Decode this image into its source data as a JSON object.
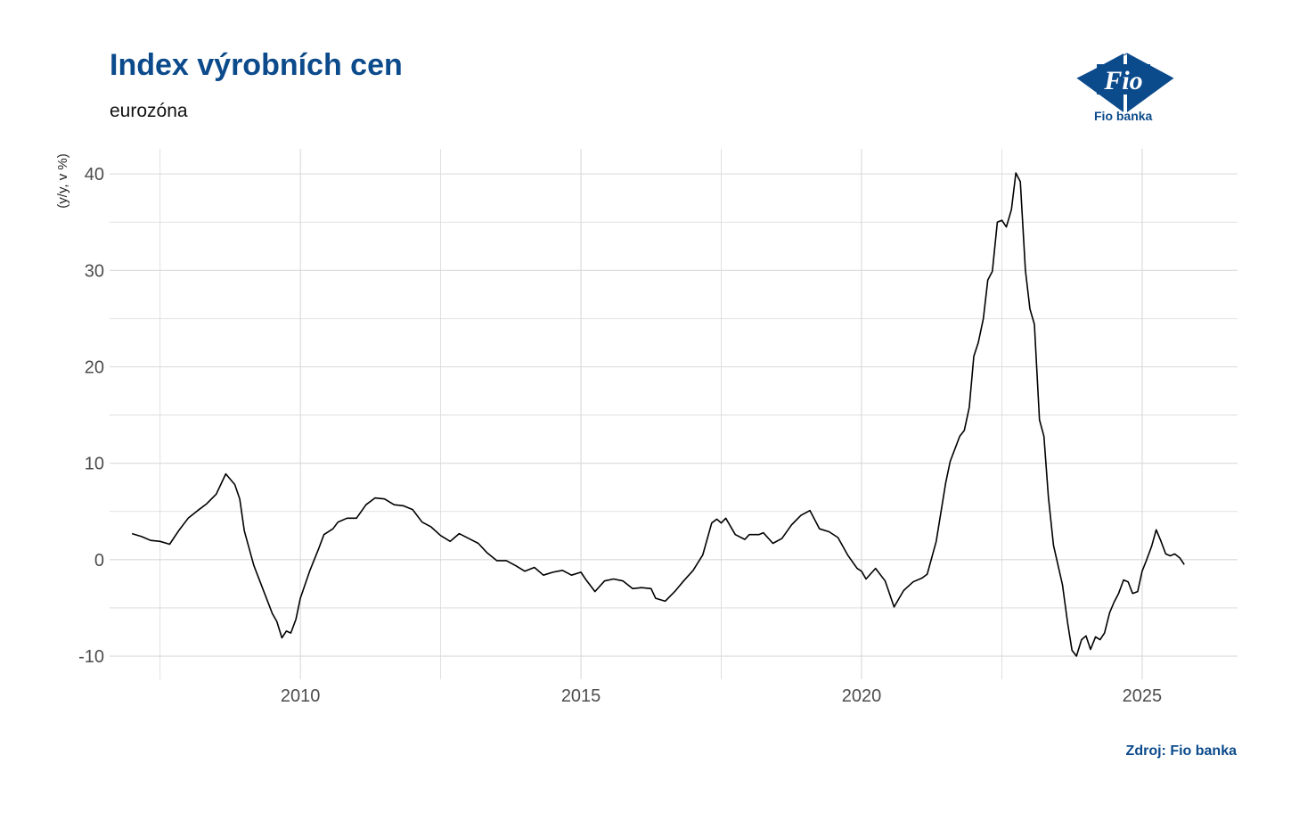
{
  "header": {
    "title": "Index výrobních cen",
    "subtitle": "eurozóna"
  },
  "logo": {
    "mark_text": "Fio",
    "caption": "Fio banka"
  },
  "footer": {
    "source": "Zdroj: Fio banka"
  },
  "colors": {
    "title": "#0b4a8b",
    "line": "#000000",
    "grid": "#d9d9d9"
  },
  "chart_data": {
    "type": "line",
    "title": "Index výrobních cen",
    "subtitle": "eurozóna",
    "xlabel": "",
    "ylabel": "(y/y, v %)",
    "xlim": [
      2006.6,
      2026.7
    ],
    "ylim": [
      -12.4,
      42.6
    ],
    "xticks": [
      2010,
      2015,
      2020,
      2025
    ],
    "xtick_labels": [
      "2010",
      "2015",
      "2020",
      "2025"
    ],
    "yticks": [
      -10,
      0,
      10,
      20,
      30,
      40
    ],
    "ytick_labels": [
      "-10",
      "0",
      "10",
      "20",
      "30",
      "40"
    ],
    "grid": true,
    "legend": "none",
    "series": [
      {
        "values": [
          [
            2007.0,
            2.7
          ],
          [
            2007.17,
            2.4
          ],
          [
            2007.33,
            2.0
          ],
          [
            2007.5,
            1.9
          ],
          [
            2007.67,
            1.6
          ],
          [
            2007.83,
            3.0
          ],
          [
            2008.0,
            4.3
          ],
          [
            2008.17,
            5.1
          ],
          [
            2008.33,
            5.8
          ],
          [
            2008.5,
            6.8
          ],
          [
            2008.67,
            8.9
          ],
          [
            2008.83,
            7.8
          ],
          [
            2008.92,
            6.3
          ],
          [
            2009.0,
            3.0
          ],
          [
            2009.17,
            -0.6
          ],
          [
            2009.33,
            -3.0
          ],
          [
            2009.5,
            -5.6
          ],
          [
            2009.58,
            -6.4
          ],
          [
            2009.67,
            -8.1
          ],
          [
            2009.75,
            -7.4
          ],
          [
            2009.83,
            -7.6
          ],
          [
            2009.92,
            -6.2
          ],
          [
            2010.0,
            -4.0
          ],
          [
            2010.17,
            -1.1
          ],
          [
            2010.33,
            1.2
          ],
          [
            2010.42,
            2.6
          ],
          [
            2010.58,
            3.2
          ],
          [
            2010.67,
            3.9
          ],
          [
            2010.83,
            4.3
          ],
          [
            2011.0,
            4.3
          ],
          [
            2011.17,
            5.7
          ],
          [
            2011.33,
            6.4
          ],
          [
            2011.5,
            6.3
          ],
          [
            2011.67,
            5.7
          ],
          [
            2011.83,
            5.6
          ],
          [
            2012.0,
            5.2
          ],
          [
            2012.17,
            3.9
          ],
          [
            2012.33,
            3.4
          ],
          [
            2012.5,
            2.5
          ],
          [
            2012.67,
            1.9
          ],
          [
            2012.83,
            2.7
          ],
          [
            2013.0,
            2.2
          ],
          [
            2013.17,
            1.7
          ],
          [
            2013.33,
            0.7
          ],
          [
            2013.5,
            -0.1
          ],
          [
            2013.67,
            -0.1
          ],
          [
            2013.83,
            -0.6
          ],
          [
            2014.0,
            -1.2
          ],
          [
            2014.17,
            -0.8
          ],
          [
            2014.33,
            -1.6
          ],
          [
            2014.5,
            -1.3
          ],
          [
            2014.67,
            -1.1
          ],
          [
            2014.83,
            -1.6
          ],
          [
            2015.0,
            -1.3
          ],
          [
            2015.08,
            -2.0
          ],
          [
            2015.25,
            -3.3
          ],
          [
            2015.42,
            -2.2
          ],
          [
            2015.58,
            -2.0
          ],
          [
            2015.75,
            -2.2
          ],
          [
            2015.92,
            -3.0
          ],
          [
            2016.08,
            -2.9
          ],
          [
            2016.25,
            -3.0
          ],
          [
            2016.33,
            -4.0
          ],
          [
            2016.5,
            -4.3
          ],
          [
            2016.67,
            -3.3
          ],
          [
            2016.83,
            -2.2
          ],
          [
            2017.0,
            -1.1
          ],
          [
            2017.17,
            0.5
          ],
          [
            2017.33,
            3.8
          ],
          [
            2017.42,
            4.2
          ],
          [
            2017.5,
            3.8
          ],
          [
            2017.58,
            4.3
          ],
          [
            2017.75,
            2.6
          ],
          [
            2017.92,
            2.1
          ],
          [
            2018.0,
            2.6
          ],
          [
            2018.17,
            2.6
          ],
          [
            2018.25,
            2.8
          ],
          [
            2018.42,
            1.7
          ],
          [
            2018.58,
            2.2
          ],
          [
            2018.75,
            3.6
          ],
          [
            2018.92,
            4.6
          ],
          [
            2019.08,
            5.1
          ],
          [
            2019.25,
            3.2
          ],
          [
            2019.42,
            2.9
          ],
          [
            2019.58,
            2.3
          ],
          [
            2019.75,
            0.5
          ],
          [
            2019.92,
            -0.9
          ],
          [
            2020.0,
            -1.2
          ],
          [
            2020.08,
            -2.0
          ],
          [
            2020.25,
            -0.9
          ],
          [
            2020.42,
            -2.2
          ],
          [
            2020.58,
            -4.9
          ],
          [
            2020.75,
            -3.2
          ],
          [
            2020.92,
            -2.3
          ],
          [
            2021.08,
            -1.9
          ],
          [
            2021.17,
            -1.5
          ],
          [
            2021.33,
            1.9
          ],
          [
            2021.5,
            8.0
          ],
          [
            2021.58,
            10.2
          ],
          [
            2021.75,
            12.8
          ],
          [
            2021.83,
            13.4
          ],
          [
            2021.92,
            15.8
          ],
          [
            2022.0,
            21.1
          ],
          [
            2022.08,
            22.5
          ],
          [
            2022.17,
            25.0
          ],
          [
            2022.25,
            29.0
          ],
          [
            2022.33,
            29.9
          ],
          [
            2022.42,
            35.0
          ],
          [
            2022.5,
            35.2
          ],
          [
            2022.58,
            34.5
          ],
          [
            2022.67,
            36.3
          ],
          [
            2022.75,
            40.1
          ],
          [
            2022.83,
            39.2
          ],
          [
            2022.92,
            30.0
          ],
          [
            2023.0,
            26.0
          ],
          [
            2023.08,
            24.4
          ],
          [
            2023.17,
            14.5
          ],
          [
            2023.25,
            12.8
          ],
          [
            2023.33,
            6.5
          ],
          [
            2023.42,
            1.5
          ],
          [
            2023.58,
            -2.6
          ],
          [
            2023.67,
            -6.5
          ],
          [
            2023.75,
            -9.4
          ],
          [
            2023.83,
            -10.0
          ],
          [
            2023.92,
            -8.3
          ],
          [
            2024.0,
            -7.9
          ],
          [
            2024.08,
            -9.3
          ],
          [
            2024.17,
            -8.0
          ],
          [
            2024.25,
            -8.3
          ],
          [
            2024.33,
            -7.6
          ],
          [
            2024.42,
            -5.5
          ],
          [
            2024.5,
            -4.4
          ],
          [
            2024.58,
            -3.5
          ],
          [
            2024.67,
            -2.1
          ],
          [
            2024.75,
            -2.3
          ],
          [
            2024.83,
            -3.5
          ],
          [
            2024.92,
            -3.3
          ],
          [
            2025.0,
            -1.2
          ],
          [
            2025.08,
            0.0
          ],
          [
            2025.17,
            1.4
          ],
          [
            2025.25,
            3.1
          ],
          [
            2025.33,
            2.0
          ],
          [
            2025.42,
            0.6
          ],
          [
            2025.5,
            0.4
          ],
          [
            2025.58,
            0.6
          ],
          [
            2025.67,
            0.2
          ],
          [
            2025.75,
            -0.5
          ]
        ]
      }
    ]
  }
}
